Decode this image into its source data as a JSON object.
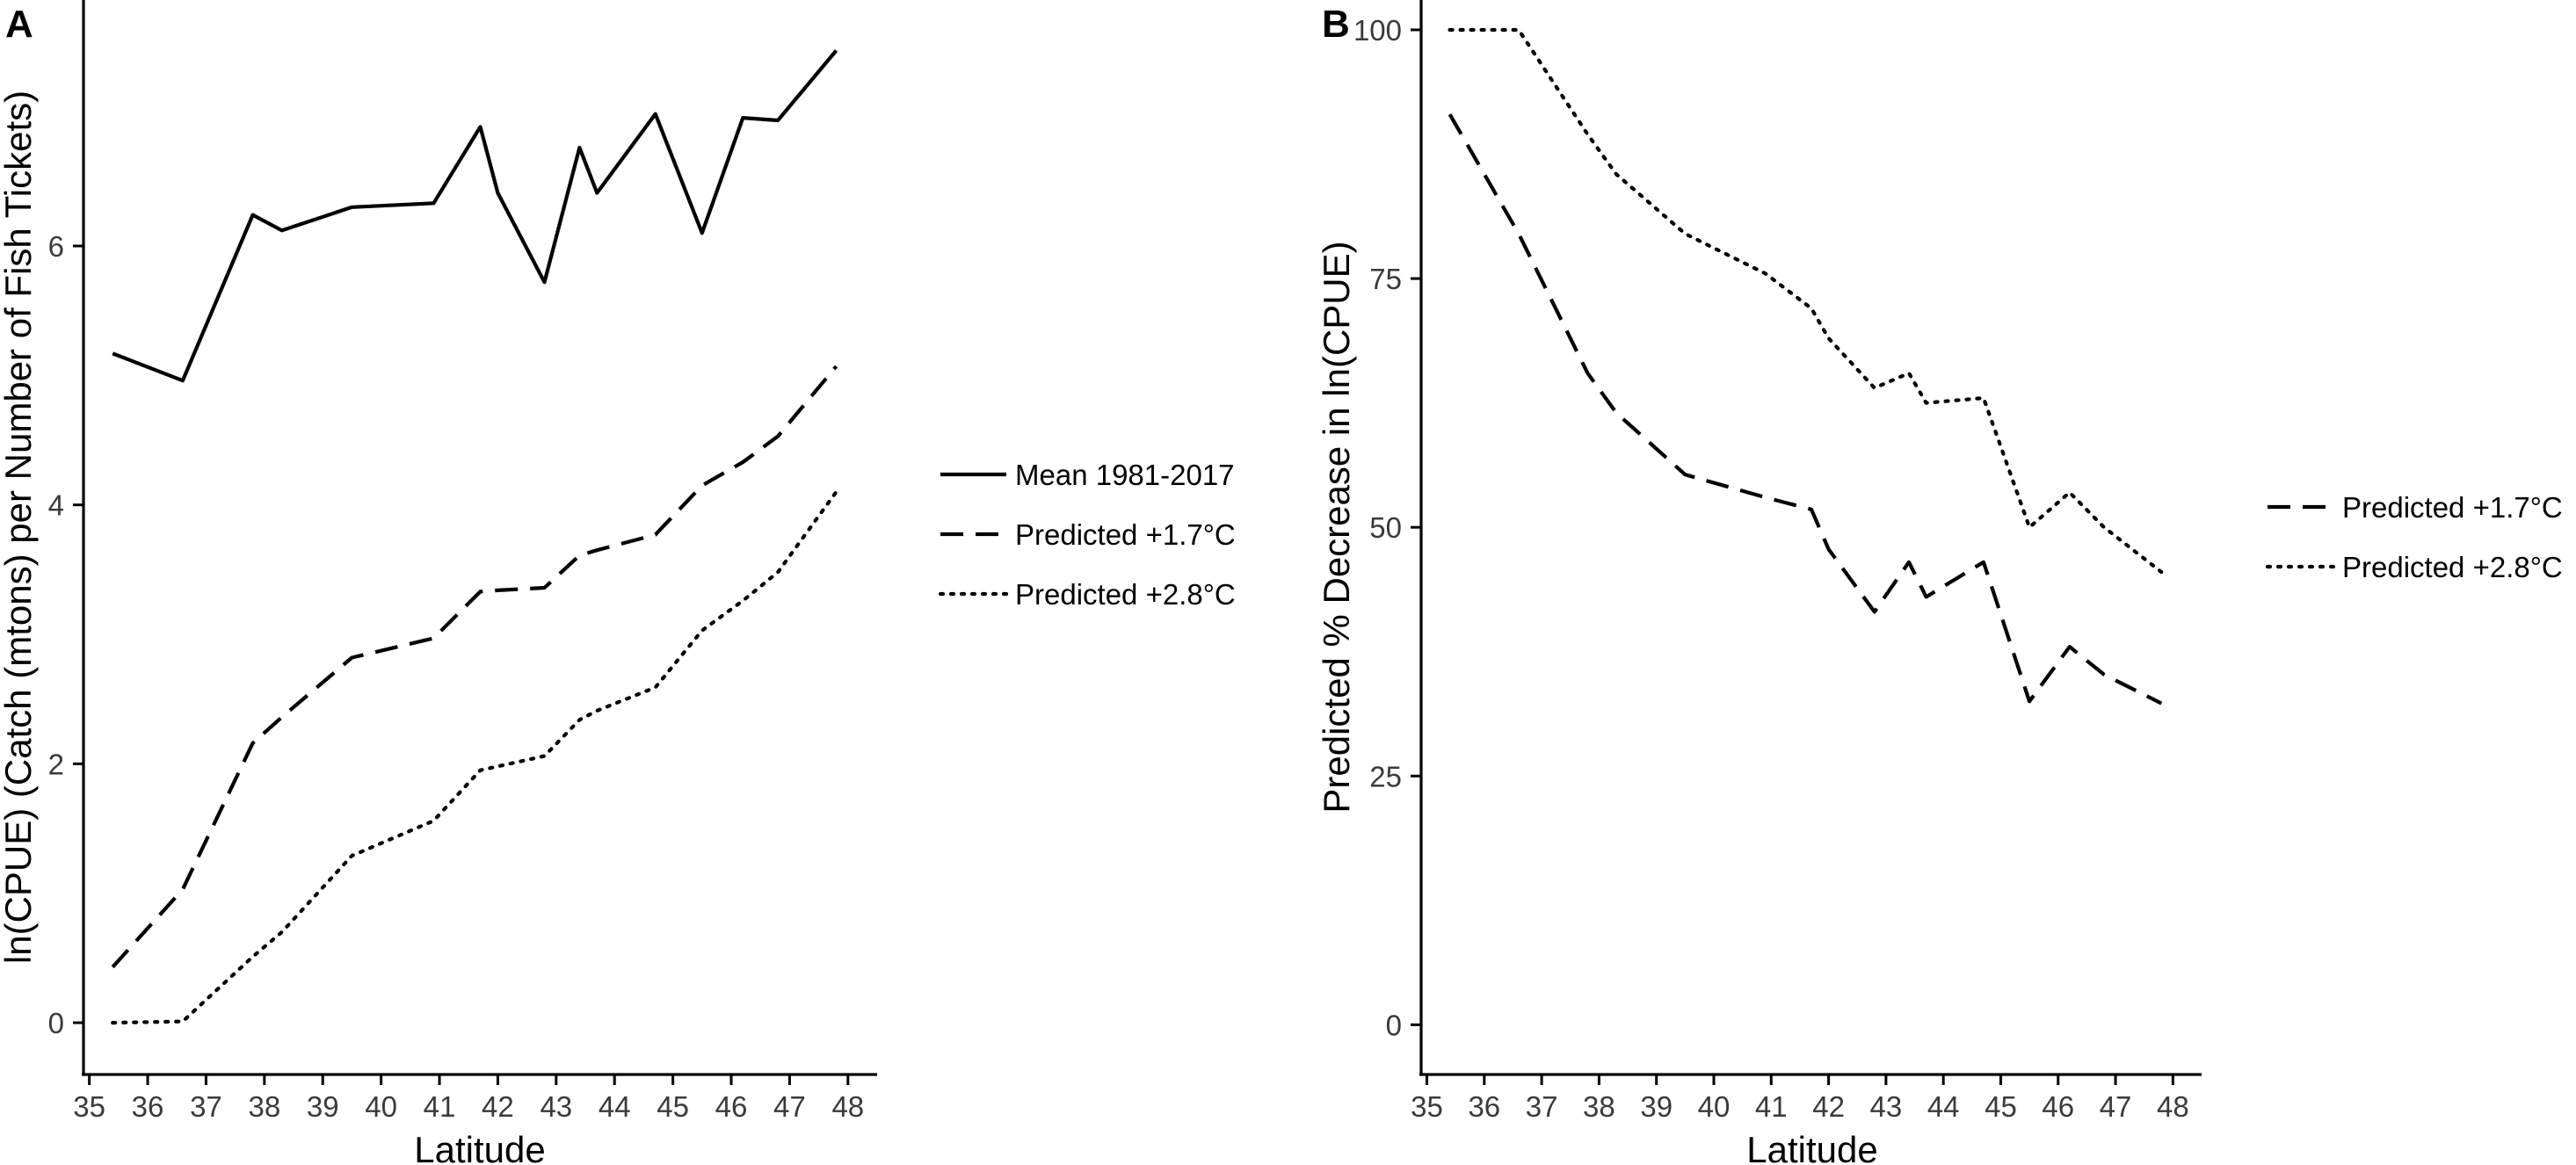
{
  "chart_data": [
    {
      "panel_label": "A",
      "type": "line",
      "xlabel": "Latitude",
      "ylabel": "ln(CPUE) (Catch (mtons) per Number of Fish Tickets)",
      "xlim": [
        34.9,
        48.5
      ],
      "ylim": [
        -0.4,
        7.9
      ],
      "xticks": [
        35,
        36,
        37,
        38,
        39,
        40,
        41,
        42,
        43,
        44,
        45,
        46,
        47,
        48
      ],
      "yticks": [
        0,
        2,
        4,
        6
      ],
      "legend_position": "right",
      "series": [
        {
          "name": "Mean 1981-2017",
          "style": "solid",
          "x": [
            35.4,
            36.6,
            37.8,
            38.3,
            39.5,
            40.9,
            41.7,
            42.0,
            42.8,
            43.4,
            43.7,
            44.7,
            45.5,
            46.2,
            46.8,
            47.8
          ],
          "y": [
            5.17,
            4.96,
            6.24,
            6.12,
            6.3,
            6.33,
            6.92,
            6.41,
            5.72,
            6.76,
            6.41,
            7.02,
            6.1,
            6.99,
            6.97,
            7.51
          ]
        },
        {
          "name": "Predicted +1.7°C",
          "style": "dashed",
          "x": [
            35.4,
            36.6,
            37.8,
            38.3,
            39.5,
            40.9,
            41.7,
            42.0,
            42.8,
            43.4,
            43.7,
            44.7,
            45.5,
            46.2,
            46.8,
            47.8
          ],
          "y": [
            0.43,
            1.03,
            2.16,
            2.36,
            2.82,
            2.97,
            3.33,
            3.34,
            3.36,
            3.61,
            3.65,
            3.77,
            4.15,
            4.33,
            4.53,
            5.07
          ]
        },
        {
          "name": "Predicted +2.8°C",
          "style": "dotted",
          "x": [
            35.4,
            36.6,
            37.8,
            38.3,
            39.5,
            40.9,
            41.7,
            42.0,
            42.8,
            43.4,
            43.7,
            44.7,
            45.5,
            46.2,
            46.8,
            47.8
          ],
          "y": [
            0.0,
            0.01,
            0.51,
            0.7,
            1.29,
            1.56,
            1.95,
            1.98,
            2.06,
            2.34,
            2.41,
            2.59,
            3.03,
            3.26,
            3.48,
            4.1
          ]
        }
      ]
    },
    {
      "panel_label": "B",
      "type": "line",
      "xlabel": "Latitude",
      "ylabel": "Predicted % Decrease in ln(CPUE)",
      "xlim": [
        34.9,
        48.5
      ],
      "ylim": [
        -5,
        103
      ],
      "xticks": [
        35,
        36,
        37,
        38,
        39,
        40,
        41,
        42,
        43,
        44,
        45,
        46,
        47,
        48
      ],
      "yticks": [
        0,
        25,
        50,
        75,
        100
      ],
      "legend_position": "right",
      "series": [
        {
          "name": "Predicted +1.7°C",
          "style": "dashed",
          "x": [
            35.4,
            36.6,
            37.8,
            38.3,
            39.5,
            40.9,
            41.7,
            42.0,
            42.8,
            43.4,
            43.7,
            44.7,
            45.5,
            46.2,
            46.8,
            47.8
          ],
          "y": [
            91.5,
            79.5,
            65.5,
            61.5,
            55.3,
            53.0,
            51.8,
            47.8,
            41.5,
            46.5,
            43.0,
            46.5,
            32.5,
            38.0,
            35.2,
            32.3
          ]
        },
        {
          "name": "Predicted +2.8°C",
          "style": "dotted",
          "x": [
            35.4,
            36.6,
            37.8,
            38.3,
            39.5,
            40.9,
            41.7,
            42.0,
            42.8,
            43.4,
            43.7,
            44.7,
            45.5,
            46.2,
            46.8,
            47.8
          ],
          "y": [
            100.0,
            100.0,
            89.5,
            85.5,
            79.5,
            75.5,
            72.0,
            69.0,
            64.0,
            65.5,
            62.5,
            63.0,
            50.0,
            53.5,
            50.0,
            45.5
          ]
        }
      ]
    }
  ]
}
